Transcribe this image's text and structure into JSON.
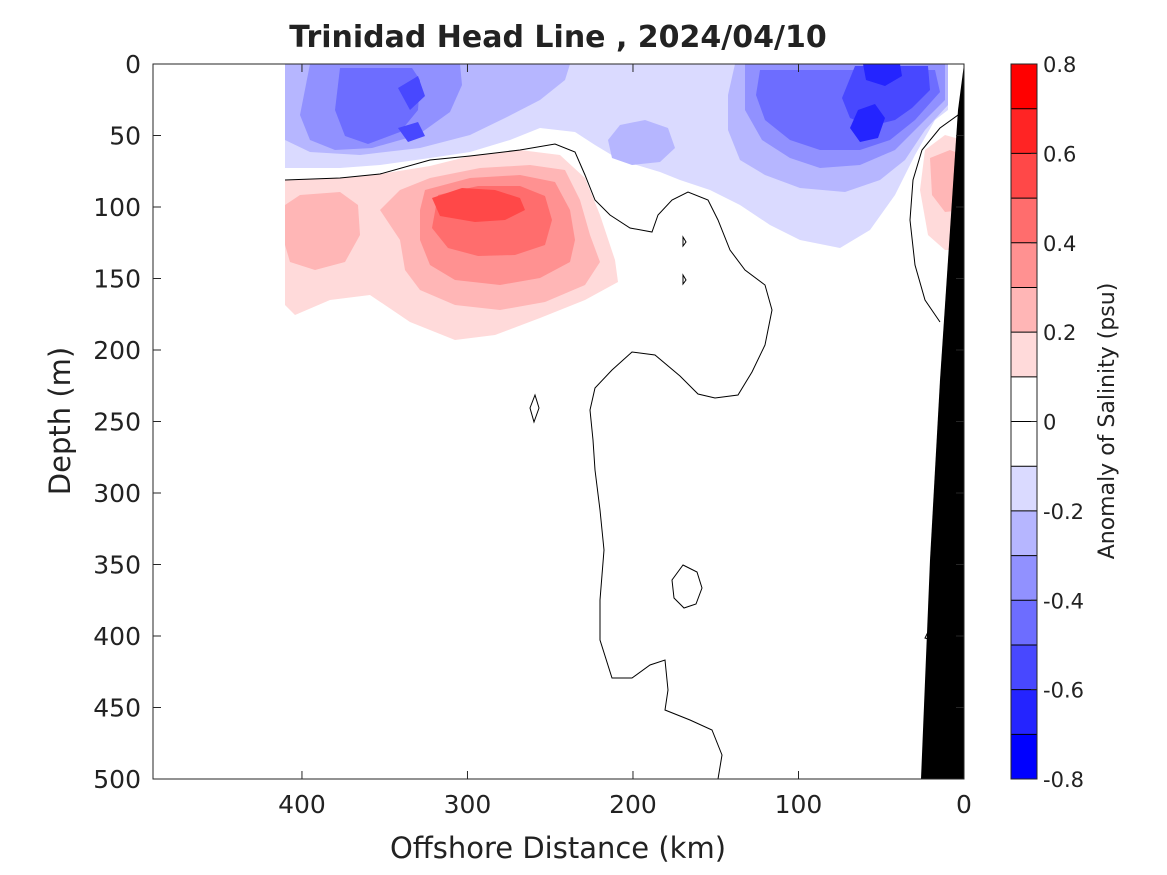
{
  "chart_data": {
    "type": "heatmap",
    "title": "Trinidad Head Line , 2024/04/10",
    "xlabel": "Offshore Distance (km)",
    "ylabel": "Depth (m)",
    "colorbar_label": "Anomaly of Salinity (psu)",
    "x_reversed": true,
    "y_reversed": true,
    "xlim": [
      490,
      0
    ],
    "ylim": [
      0,
      500
    ],
    "x_ticks": [
      400,
      300,
      200,
      100,
      0
    ],
    "y_ticks": [
      0,
      50,
      100,
      150,
      200,
      250,
      300,
      350,
      400,
      450,
      500
    ],
    "colorbar": {
      "range": [
        -0.8,
        0.8
      ],
      "step": 0.1,
      "tick_values": [
        0.8,
        0.6,
        0.4,
        0.2,
        0,
        -0.2,
        -0.4,
        -0.6,
        -0.8
      ],
      "tick_labels": [
        "0.8",
        "0.6",
        "0.4",
        "0.2",
        "0",
        "-0.2",
        "-0.4",
        "-0.6",
        "-0.8"
      ],
      "colors": [
        "#0000ff",
        "#2424ff",
        "#4848ff",
        "#6d6dff",
        "#9191ff",
        "#b6b6ff",
        "#dadaff",
        "#ffffff",
        "#ffffff",
        "#ffdada",
        "#ffb6b6",
        "#ff9191",
        "#ff6d6d",
        "#ff4848",
        "#ff2424",
        "#ff0000"
      ]
    },
    "features": [
      {
        "kind": "negative anomaly layer",
        "x_range": [
          410,
          0
        ],
        "depth_range": [
          0,
          75
        ],
        "peak_value": -0.6
      },
      {
        "kind": "positive anomaly core",
        "x_center": 285,
        "depth_center": 105,
        "peak_value": 0.5
      },
      {
        "kind": "positive anomaly nearshore",
        "x_center": 15,
        "depth_center": 110,
        "peak_value": 0.3
      },
      {
        "kind": "zero contour",
        "label": "0"
      },
      {
        "kind": "bathymetry mask",
        "color": "#000000"
      }
    ]
  }
}
